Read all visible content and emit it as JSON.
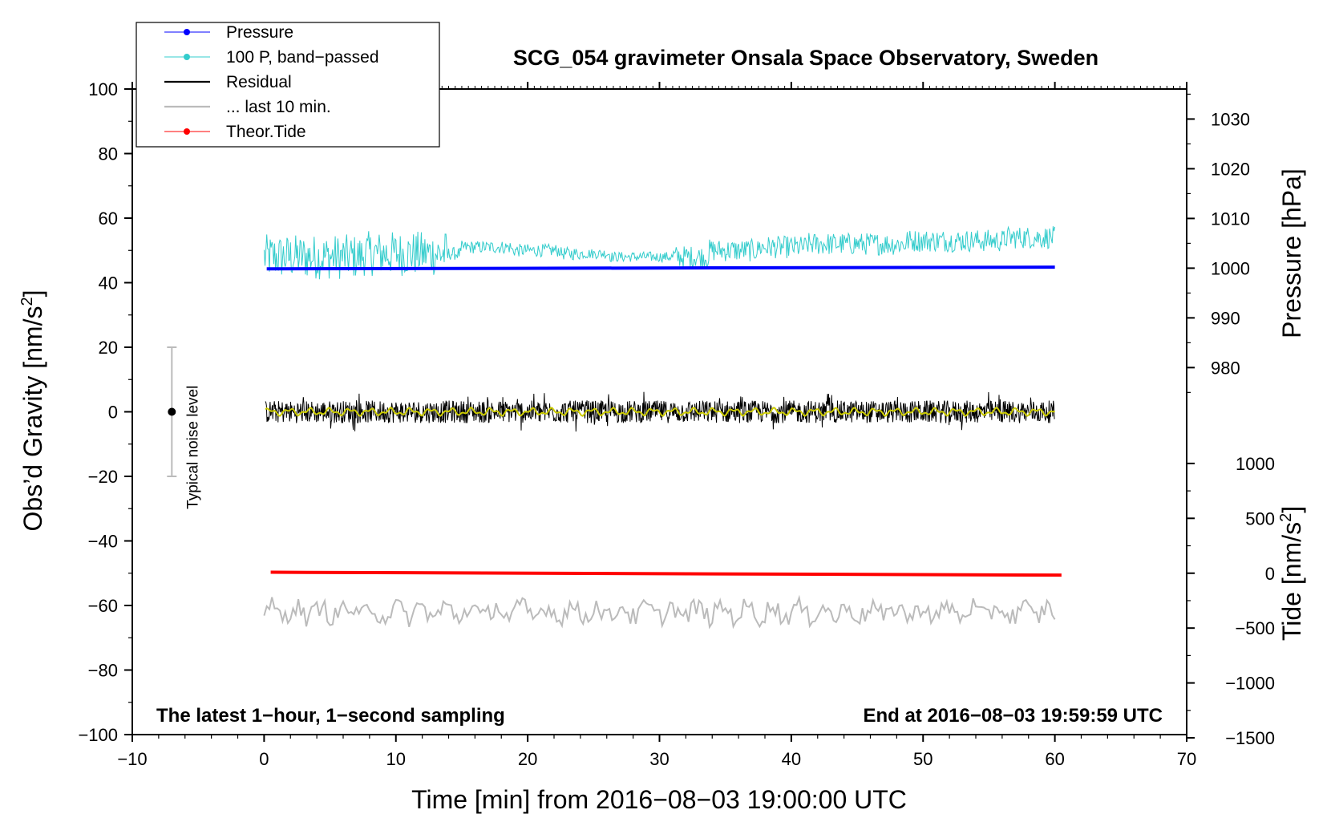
{
  "chart_data": {
    "type": "line",
    "title": "SCG_054 gravimeter Onsala Space Observatory, Sweden",
    "xlabel": "Time [min] from 2016−08−03 19:00:00 UTC",
    "ylabel": "Obs’d Gravity [nm/s",
    "ylabel_sup": "2",
    "ylabel_end": "]",
    "xlim": [
      -10,
      70
    ],
    "ylim": [
      -100,
      100
    ],
    "xticks": [
      -10,
      0,
      10,
      20,
      30,
      40,
      50,
      60,
      70
    ],
    "xtick_labels": [
      "−10",
      "0",
      "10",
      "20",
      "30",
      "40",
      "50",
      "60",
      "70"
    ],
    "yticks": [
      100,
      80,
      60,
      40,
      20,
      0,
      -20,
      -40,
      -60,
      -80,
      -100
    ],
    "ytick_labels": [
      "100",
      "80",
      "60",
      "40",
      "20",
      "0",
      "−20",
      "−40",
      "−60",
      "−80",
      "−100"
    ],
    "right_axes": {
      "pressure": {
        "label": "Pressure [hPa]",
        "ticks": [
          980,
          990,
          1000,
          1010,
          1020,
          1030
        ],
        "tick_labels": [
          "980",
          "990",
          "1000",
          "1010",
          "1020",
          "1030"
        ],
        "gravity_at_1000": 44.5,
        "gravity_per_hPa": 1.54
      },
      "tide": {
        "label": "Tide [nm/s",
        "label_sup": "2",
        "label_end": "]",
        "ticks": [
          1000,
          500,
          0,
          -500,
          -1000,
          -1500
        ],
        "tick_labels": [
          "1000",
          "500",
          "0",
          "−500",
          "−1000",
          "−1500"
        ],
        "gravity_at_0": -50,
        "gravity_per_unit": 0.034
      }
    },
    "series": [
      {
        "name": "Pressure",
        "color": "#0000ff",
        "start_value": 44.3,
        "end_value": 44.8
      },
      {
        "name": "100 P, band−passed",
        "color": "#33cccc",
        "center_values": [
          48,
          48,
          49,
          49,
          51,
          50,
          49,
          48,
          48,
          50,
          51,
          52,
          52,
          53,
          53,
          54
        ]
      },
      {
        "name": "Residual",
        "color": "#000000",
        "center_value": 0,
        "amplitude": 3.5,
        "smooth_color": "#cccc00"
      },
      {
        "name": "... last 10 min.",
        "color": "#bbbbbb",
        "center_value": -62,
        "amplitude": 3
      },
      {
        "name": "Theor.Tide",
        "color": "#ff0000",
        "start_value": -49.7,
        "end_value": -50.6
      }
    ],
    "noise_bar": {
      "label": "Typical noise level",
      "x": -7,
      "center": 0,
      "low": -20,
      "high": 20
    },
    "annotations": {
      "left": "The latest 1−hour, 1−second sampling",
      "right": "End at 2016−08−03 19:59:59 UTC"
    },
    "legend_position": "top-left"
  }
}
